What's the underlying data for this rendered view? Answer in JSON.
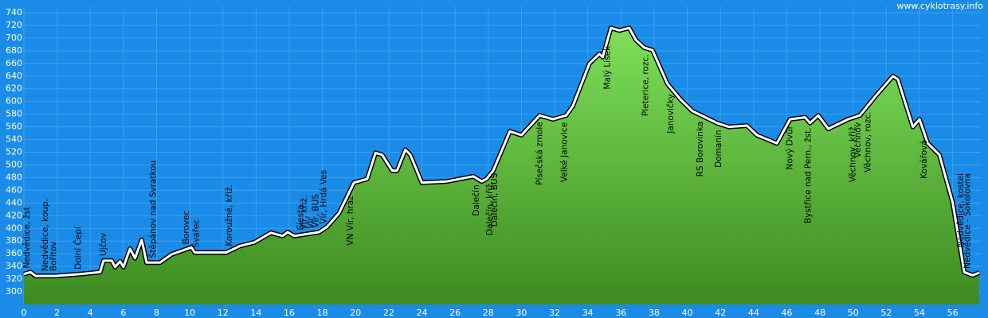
{
  "chart_data": {
    "type": "area",
    "source": "www.cyklotrasy.info",
    "x": [
      0,
      0.4,
      0.7,
      1.9,
      3.4,
      4.6,
      4.8,
      5.3,
      5.5,
      5.8,
      6.0,
      6.4,
      6.7,
      7.1,
      7.4,
      8.2,
      8.9,
      10.1,
      10.3,
      12.2,
      13,
      13.9,
      14.9,
      15.6,
      15.9,
      16.3,
      17.8,
      18.3,
      19,
      19.9,
      20.7,
      21.2,
      21.6,
      22.2,
      22.5,
      23,
      23.3,
      24,
      25.5,
      27.1,
      27.6,
      27.9,
      28.3,
      29.3,
      30,
      31.1,
      31.9,
      32.7,
      33.1,
      34.1,
      34.7,
      34.9,
      35.4,
      35.9,
      36.5,
      36.9,
      37.4,
      37.9,
      38.8,
      39.6,
      40.3,
      41.8,
      42.5,
      43.6,
      44.2,
      45.4,
      46.2,
      47.1,
      47.4,
      47.9,
      48.5,
      49.7,
      50.4,
      51.4,
      52.4,
      52.7,
      53.6,
      54,
      54.5,
      55.2,
      56,
      56.7,
      57.2,
      57.6
    ],
    "values": [
      328,
      331,
      325,
      325,
      328,
      331,
      349,
      349,
      339,
      348,
      339,
      368,
      353,
      382,
      346,
      346,
      359,
      370,
      362,
      362,
      372,
      378,
      393,
      388,
      394,
      388,
      394,
      403,
      424,
      472,
      478,
      519,
      516,
      491,
      491,
      524,
      516,
      472,
      474,
      482,
      474,
      478,
      491,
      553,
      547,
      578,
      572,
      578,
      593,
      660,
      675,
      670,
      716,
      712,
      716,
      697,
      685,
      681,
      628,
      603,
      585,
      566,
      560,
      562,
      547,
      534,
      572,
      575,
      566,
      578,
      557,
      572,
      578,
      610,
      640,
      635,
      560,
      572,
      534,
      516,
      441,
      331,
      326,
      330
    ],
    "color": "#5fbf3a",
    "xlim": [
      0,
      57.7
    ],
    "ylim": [
      280,
      750
    ],
    "xticks": [
      0,
      2,
      4,
      6,
      8,
      10,
      12,
      14,
      16,
      18,
      20,
      22,
      24,
      26,
      28,
      30,
      32,
      34,
      36,
      38,
      40,
      42,
      44,
      46,
      48,
      50,
      52,
      54,
      56
    ],
    "yticks": [
      300,
      320,
      340,
      360,
      380,
      400,
      420,
      440,
      460,
      480,
      500,
      520,
      540,
      560,
      580,
      600,
      620,
      640,
      660,
      680,
      700,
      720,
      740
    ],
    "grid": true,
    "annotations": [
      {
        "text": "Nedvědice, žst",
        "x": 0.2
      },
      {
        "text": "Nedvědice, koup.",
        "x": 1.3
      },
      {
        "text": "Bořitov",
        "x": 1.8
      },
      {
        "text": "Dolní Čepí",
        "x": 3.3
      },
      {
        "text": "Ujčov",
        "x": 4.8
      },
      {
        "text": "Štěpánov nad Svratkou",
        "x": 7.8
      },
      {
        "text": "Borovec",
        "x": 9.8
      },
      {
        "text": "Švařec",
        "x": 10.4
      },
      {
        "text": "Koroužné, křiž.",
        "x": 12.4
      },
      {
        "text": "Siesta",
        "x": 16.7
      },
      {
        "text": "Vír, křiž.",
        "x": 16.9
      },
      {
        "text": "Vír",
        "x": 17.3
      },
      {
        "text": "Vír, BUS",
        "x": 17.6
      },
      {
        "text": "Vír, Hrdá Ves",
        "x": 18.1
      },
      {
        "text": "VN Vír, hráz",
        "x": 19.7
      },
      {
        "text": "Dalečín",
        "x": 27.3
      },
      {
        "text": "Dalečín, křiž.",
        "x": 28.1
      },
      {
        "text": "Dalečín, BUS",
        "x": 28.4
      },
      {
        "text": "Písečská zmole",
        "x": 31.1
      },
      {
        "text": "Velké Janovice",
        "x": 32.6
      },
      {
        "text": "Malý Lísek",
        "x": 35.2
      },
      {
        "text": "Pleterice, rozc.",
        "x": 37.5
      },
      {
        "text": "Janovičky",
        "x": 39.0
      },
      {
        "text": "RS Borovinka",
        "x": 40.8
      },
      {
        "text": "Domanín",
        "x": 41.9
      },
      {
        "text": "Nový Dvůr",
        "x": 46.2
      },
      {
        "text": "Bystřice nad  Pern., žst.",
        "x": 47.3
      },
      {
        "text": "Věchnov, křiž.",
        "x": 50.0
      },
      {
        "text": "Věchnov",
        "x": 50.3
      },
      {
        "text": "Věchnov, rozc.",
        "x": 50.9
      },
      {
        "text": "Kovářová",
        "x": 54.3
      },
      {
        "text": "Nedvědice, kostel",
        "x": 56.5
      },
      {
        "text": "Nedvědice - Sokolovna",
        "x": 56.9
      }
    ]
  }
}
